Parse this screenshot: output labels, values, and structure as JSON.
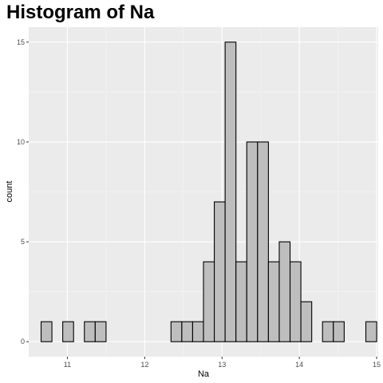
{
  "chart_data": {
    "type": "bar",
    "title": "Histogram of Na",
    "xlabel": "Na",
    "ylabel": "count",
    "bin_width": 0.14,
    "first_bin_center": 10.73,
    "counts": [
      1,
      0,
      1,
      0,
      1,
      1,
      0,
      0,
      0,
      0,
      0,
      0,
      1,
      1,
      1,
      4,
      7,
      15,
      4,
      10,
      10,
      4,
      5,
      4,
      2,
      0,
      1,
      1,
      0,
      0,
      1
    ],
    "xlim": [
      10.5,
      15.02
    ],
    "ylim": [
      -0.75,
      15.75
    ],
    "x_ticks": [
      11,
      12,
      13,
      14,
      15
    ],
    "y_ticks": [
      0,
      5,
      10,
      15
    ],
    "grid": true,
    "colors": {
      "panel": "#ebebeb",
      "bar_fill": "#bebebe",
      "bar_stroke": "#000000"
    }
  }
}
